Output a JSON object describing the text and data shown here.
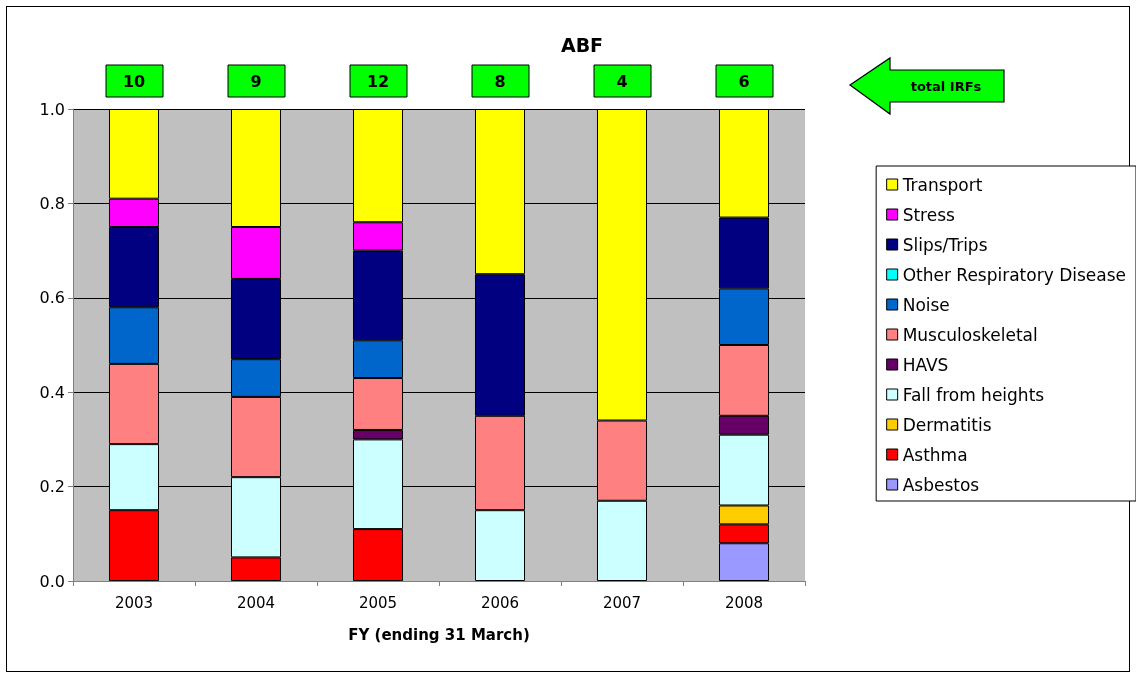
{
  "chart_data": {
    "type": "bar",
    "title": "ABF",
    "xlabel": "FY (ending 31 March)",
    "categories": [
      "2003",
      "2004",
      "2005",
      "2006",
      "2007",
      "2008"
    ],
    "stacked": true,
    "series": [
      {
        "name": "Asbestos",
        "color": "#9999ff",
        "values": [
          null,
          null,
          null,
          null,
          null,
          0.08
        ]
      },
      {
        "name": "Asthma",
        "color": "#ff0000",
        "values": [
          0.15,
          0.05,
          0.11,
          null,
          null,
          0.04
        ]
      },
      {
        "name": "Dermatitis",
        "color": "#ffcc00",
        "values": [
          null,
          null,
          null,
          null,
          null,
          0.04
        ]
      },
      {
        "name": "Fall from heights",
        "color": "#ccffff",
        "values": [
          0.14,
          0.17,
          0.19,
          0.15,
          0.17,
          0.15
        ]
      },
      {
        "name": "HAVS",
        "color": "#660066",
        "values": [
          null,
          null,
          0.02,
          null,
          null,
          0.04
        ]
      },
      {
        "name": "Musculoskeletal",
        "color": "#ff8080",
        "values": [
          0.17,
          0.17,
          0.11,
          0.2,
          0.17,
          0.15
        ]
      },
      {
        "name": "Noise",
        "color": "#0066cc",
        "values": [
          0.12,
          0.08,
          0.08,
          null,
          null,
          0.12
        ]
      },
      {
        "name": "Other Respiratory Disease",
        "color": "#00ffff",
        "values": [
          null,
          null,
          null,
          null,
          null,
          null
        ]
      },
      {
        "name": "Slips/Trips",
        "color": "#000080",
        "values": [
          0.17,
          0.17,
          0.19,
          0.3,
          null,
          0.15
        ]
      },
      {
        "name": "Stress",
        "color": "#ff00ff",
        "values": [
          0.06,
          0.11,
          0.06,
          null,
          null,
          null
        ]
      },
      {
        "name": "Transport",
        "color": "#ffff00",
        "values": [
          0.19,
          0.25,
          0.24,
          0.35,
          0.66,
          0.23
        ]
      }
    ],
    "ylim": [
      0,
      1
    ],
    "yticks": [
      {
        "value": 0,
        "label": "0.0"
      },
      0.2,
      0.4,
      0.6,
      0.8,
      {
        "value": 1,
        "label": "1.0"
      }
    ],
    "grid": "y",
    "legend": "right",
    "annotations": [
      "10",
      "9",
      "12",
      "8",
      "4",
      "6",
      "total IRFs"
    ]
  }
}
